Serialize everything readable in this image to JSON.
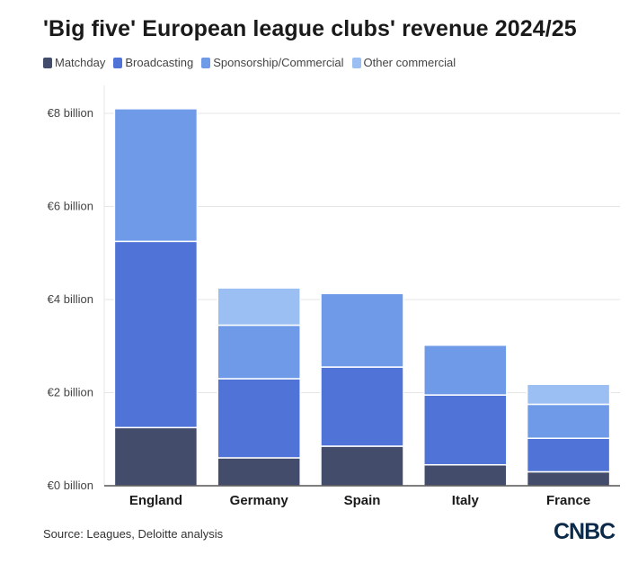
{
  "title": "'Big five' European league clubs' revenue 2024/25",
  "source": "Source: Leagues, Deloitte analysis",
  "logo_text": "CNBC",
  "colors": {
    "Matchday": "#434d6b",
    "Broadcasting": "#4f73d6",
    "Sponsorship/Commercial": "#6f9ae8",
    "Other commercial": "#9bbff3",
    "grid": "#e6e6e6",
    "axis": "#999999"
  },
  "chart_data": {
    "type": "bar",
    "stacked": true,
    "categories": [
      "England",
      "Germany",
      "Spain",
      "Italy",
      "France"
    ],
    "series": [
      {
        "name": "Matchday",
        "values": [
          1.25,
          0.6,
          0.85,
          0.45,
          0.3
        ]
      },
      {
        "name": "Broadcasting",
        "values": [
          4.0,
          1.7,
          1.7,
          1.5,
          0.72
        ]
      },
      {
        "name": "Sponsorship/Commercial",
        "values": [
          2.85,
          1.15,
          1.58,
          1.07,
          0.73
        ]
      },
      {
        "name": "Other commercial",
        "values": [
          0,
          0.8,
          0,
          0,
          0.43
        ]
      }
    ],
    "ylim": [
      0,
      8.6
    ],
    "yticks": [
      0,
      2,
      4,
      6,
      8
    ],
    "ytick_labels": [
      "€0 billion",
      "€2 billion",
      "€4 billion",
      "€6 billion",
      "€8 billion"
    ],
    "grid": true,
    "legend_position": "top-left"
  }
}
